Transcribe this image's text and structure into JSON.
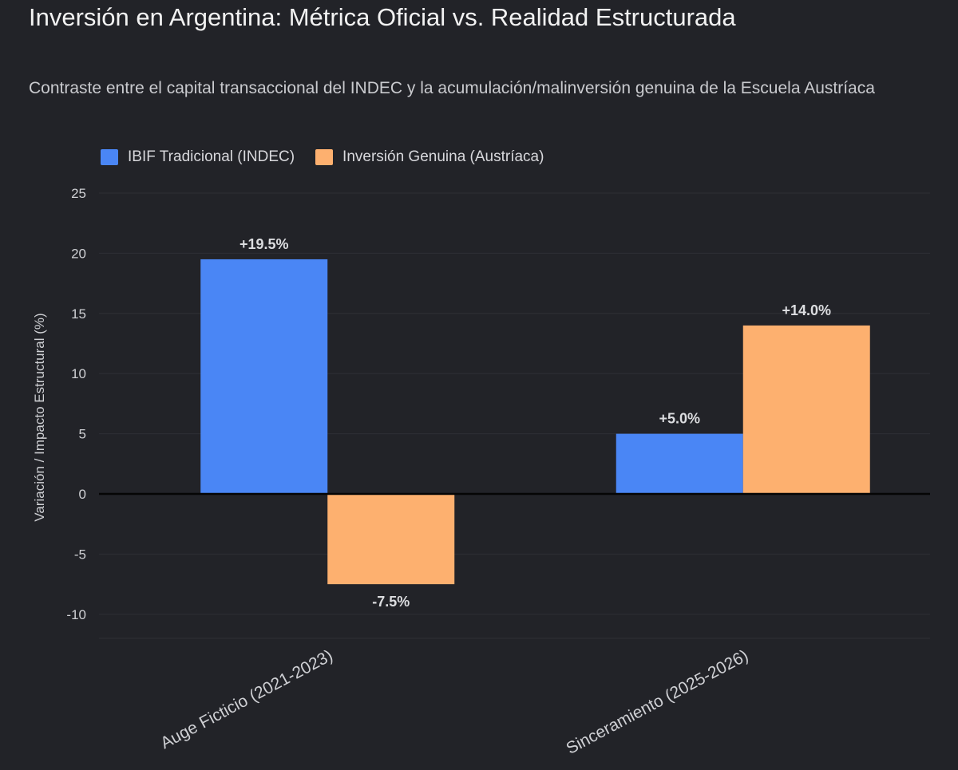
{
  "header": {
    "title": "Inversión en Argentina: Métrica Oficial vs. Realidad Estructurada",
    "subtitle": "Contraste entre el capital transaccional del INDEC y la acumulación/malinversión genuina de la Escuela Austríaca"
  },
  "chart_data": {
    "type": "bar",
    "title": "Inversión en Argentina: Métrica Oficial vs. Realidad Estructurada",
    "subtitle": "Contraste entre el capital transaccional del INDEC y la acumulación/malinversión genuina de la Escuela Austríaca",
    "xlabel": "",
    "ylabel": "Variación / Impacto Estructural (%)",
    "categories": [
      "Auge Ficticio (2021-2023)",
      "Sinceramiento (2025-2026)"
    ],
    "series": [
      {
        "name": "IBIF Tradicional (INDEC)",
        "color": "#4a86f5",
        "values": [
          19.5,
          5.0
        ],
        "labels": [
          "+19.5%",
          "+5.0%"
        ]
      },
      {
        "name": "Inversión Genuina (Austríaca)",
        "color": "#fdb06f",
        "values": [
          -7.5,
          14.0
        ],
        "labels": [
          "-7.5%",
          "+14.0%"
        ]
      }
    ],
    "ylim": [
      -12,
      25
    ],
    "yticks": [
      25,
      20,
      15,
      10,
      5,
      0,
      -5,
      -10
    ],
    "grid": true,
    "legend_position": "top-left",
    "zero_line": true
  }
}
